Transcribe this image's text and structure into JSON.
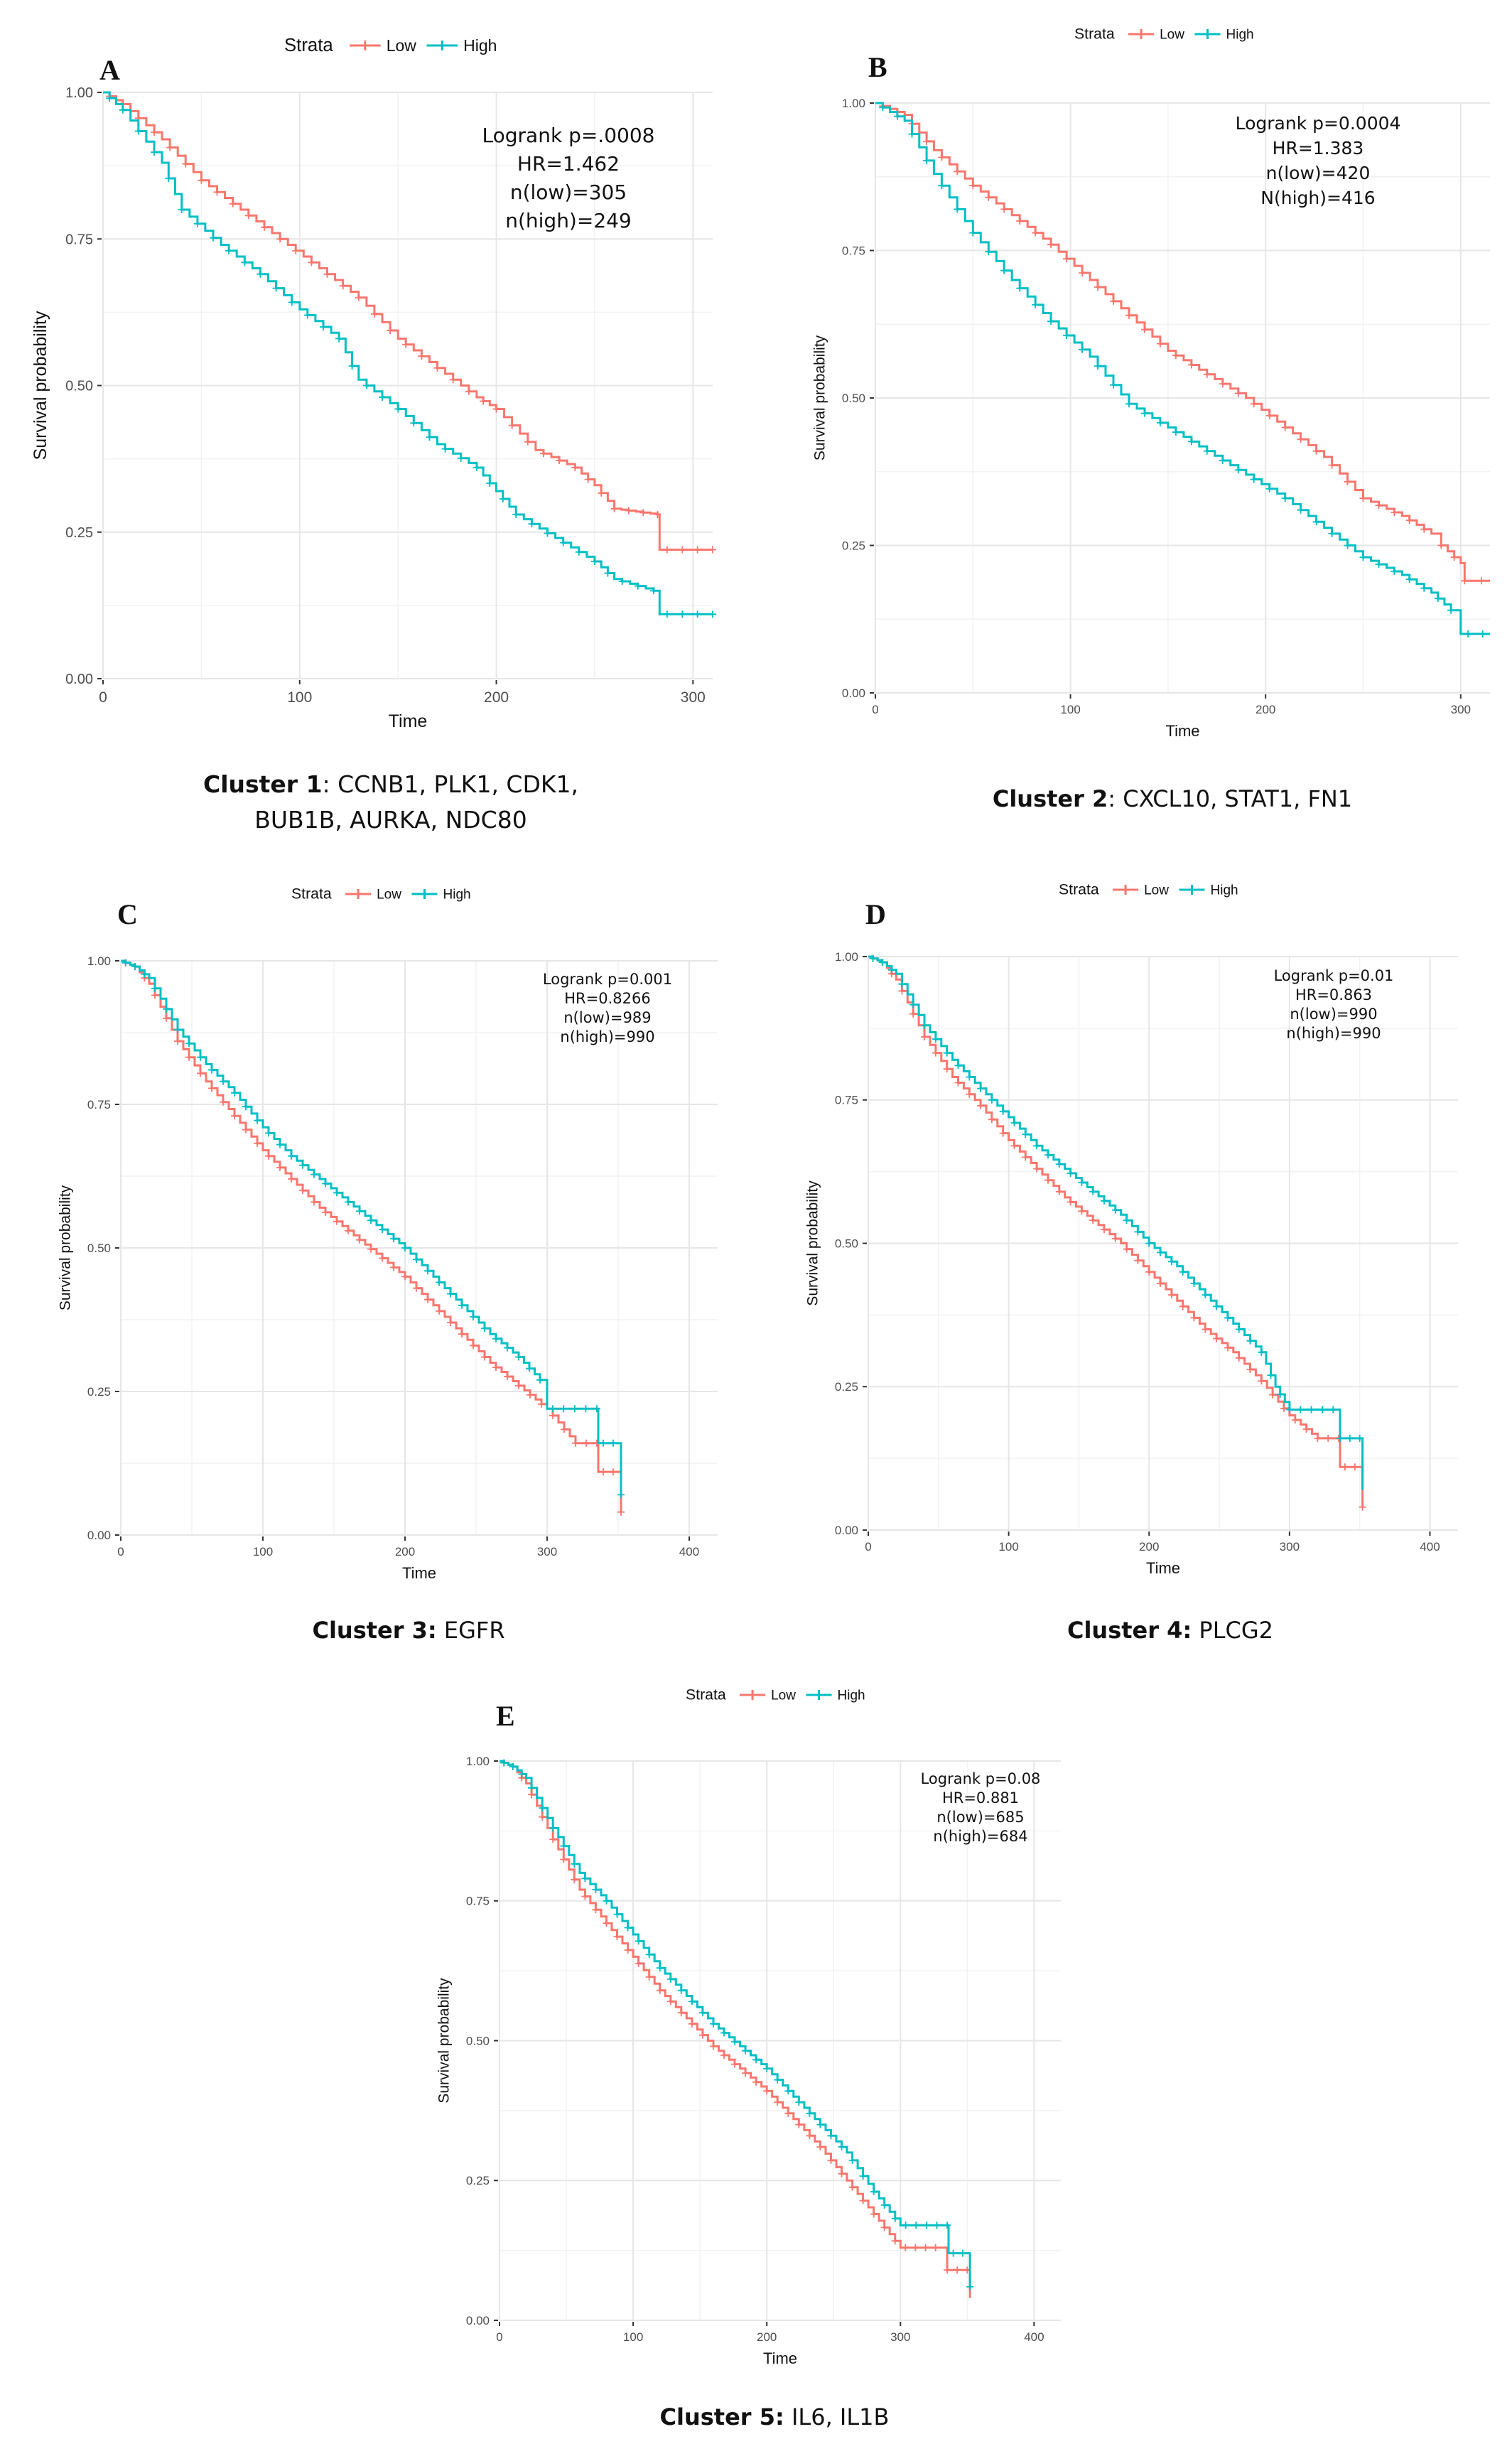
{
  "colors": {
    "low": "#F8766D",
    "high": "#00BFC4"
  },
  "chart_data": [
    {
      "panel": "A",
      "type": "line",
      "legend": {
        "title": "Strata",
        "entries": [
          "Low",
          "High"
        ],
        "position": "top"
      },
      "xlabel": "Time",
      "ylabel": "Survival probability",
      "xlim": [
        0,
        310
      ],
      "ylim": [
        0,
        1
      ],
      "xticks": [
        "0",
        "100",
        "200",
        "300"
      ],
      "yticks": [
        "0.00",
        "0.25",
        "0.50",
        "0.75",
        "1.00"
      ],
      "annotation": [
        "Logrank p=.0008",
        "HR=1.462",
        "n(low)=305",
        "n(high)=249"
      ],
      "caption": {
        "bold": "Cluster 1",
        "rest": ": CCNB1, PLK1, CDK1,",
        "line2": "BUB1B, AURKA, NDC80"
      },
      "series": [
        {
          "name": "Low",
          "points": [
            [
              0,
              1.0
            ],
            [
              10,
              0.98
            ],
            [
              30,
              0.92
            ],
            [
              50,
              0.85
            ],
            [
              70,
              0.8
            ],
            [
              90,
              0.75
            ],
            [
              110,
              0.7
            ],
            [
              130,
              0.65
            ],
            [
              150,
              0.58
            ],
            [
              170,
              0.53
            ],
            [
              190,
              0.48
            ],
            [
              200,
              0.46
            ],
            [
              220,
              0.39
            ],
            [
              240,
              0.36
            ],
            [
              250,
              0.33
            ],
            [
              260,
              0.29
            ],
            [
              282,
              0.28
            ],
            [
              283,
              0.22
            ],
            [
              310,
              0.22
            ]
          ]
        },
        {
          "name": "High",
          "points": [
            [
              0,
              1.0
            ],
            [
              10,
              0.97
            ],
            [
              30,
              0.88
            ],
            [
              40,
              0.8
            ],
            [
              60,
              0.74
            ],
            [
              80,
              0.69
            ],
            [
              100,
              0.63
            ],
            [
              120,
              0.58
            ],
            [
              130,
              0.51
            ],
            [
              150,
              0.46
            ],
            [
              170,
              0.4
            ],
            [
              190,
              0.36
            ],
            [
              200,
              0.32
            ],
            [
              210,
              0.28
            ],
            [
              230,
              0.24
            ],
            [
              250,
              0.2
            ],
            [
              260,
              0.17
            ],
            [
              280,
              0.15
            ],
            [
              283,
              0.11
            ],
            [
              310,
              0.11
            ]
          ]
        }
      ]
    },
    {
      "panel": "B",
      "type": "line",
      "legend": {
        "title": "Strata",
        "entries": [
          "Low",
          "High"
        ],
        "position": "top"
      },
      "xlabel": "Time",
      "ylabel": "Survival probability",
      "xlim": [
        0,
        315
      ],
      "ylim": [
        0,
        1
      ],
      "xticks": [
        "0",
        "100",
        "200",
        "300"
      ],
      "yticks": [
        "0.00",
        "0.25",
        "0.50",
        "0.75",
        "1.00"
      ],
      "annotation": [
        "Logrank p=0.0004",
        "HR=1.383",
        "n(low)=420",
        "N(high)=416"
      ],
      "caption": {
        "bold": "Cluster 2",
        "rest": ": CXCL10, STAT1, FN1",
        "line2": ""
      },
      "series": [
        {
          "name": "Low",
          "points": [
            [
              0,
              1.0
            ],
            [
              15,
              0.98
            ],
            [
              30,
              0.92
            ],
            [
              50,
              0.86
            ],
            [
              70,
              0.81
            ],
            [
              90,
              0.76
            ],
            [
              110,
              0.7
            ],
            [
              130,
              0.64
            ],
            [
              150,
              0.58
            ],
            [
              170,
              0.54
            ],
            [
              190,
              0.5
            ],
            [
              210,
              0.45
            ],
            [
              230,
              0.4
            ],
            [
              250,
              0.33
            ],
            [
              270,
              0.3
            ],
            [
              285,
              0.27
            ],
            [
              290,
              0.25
            ],
            [
              300,
              0.22
            ],
            [
              302,
              0.19
            ],
            [
              315,
              0.19
            ]
          ]
        },
        {
          "name": "High",
          "points": [
            [
              0,
              1.0
            ],
            [
              15,
              0.97
            ],
            [
              30,
              0.88
            ],
            [
              50,
              0.78
            ],
            [
              70,
              0.7
            ],
            [
              90,
              0.63
            ],
            [
              110,
              0.57
            ],
            [
              130,
              0.49
            ],
            [
              150,
              0.45
            ],
            [
              170,
              0.41
            ],
            [
              190,
              0.37
            ],
            [
              210,
              0.33
            ],
            [
              230,
              0.28
            ],
            [
              250,
              0.23
            ],
            [
              270,
              0.2
            ],
            [
              285,
              0.17
            ],
            [
              295,
              0.14
            ],
            [
              300,
              0.1
            ],
            [
              315,
              0.1
            ]
          ]
        }
      ]
    },
    {
      "panel": "C",
      "type": "line",
      "legend": {
        "title": "Strata",
        "entries": [
          "Low",
          "High"
        ],
        "position": "top"
      },
      "xlabel": "Time",
      "ylabel": "Survival probability",
      "xlim": [
        0,
        420
      ],
      "ylim": [
        0,
        1
      ],
      "xticks": [
        "0",
        "100",
        "200",
        "300",
        "400"
      ],
      "yticks": [
        "0.00",
        "0.25",
        "0.50",
        "0.75",
        "1.00"
      ],
      "annotation": [
        "Logrank p=0.001",
        "HR=0.8266",
        "n(low)=989",
        "n(high)=990"
      ],
      "caption": {
        "bold": "Cluster 3:",
        "rest": " EGFR",
        "line2": ""
      },
      "series": [
        {
          "name": "Low",
          "points": [
            [
              0,
              1.0
            ],
            [
              10,
              0.99
            ],
            [
              20,
              0.96
            ],
            [
              40,
              0.86
            ],
            [
              60,
              0.79
            ],
            [
              80,
              0.73
            ],
            [
              100,
              0.67
            ],
            [
              120,
              0.62
            ],
            [
              140,
              0.57
            ],
            [
              160,
              0.53
            ],
            [
              180,
              0.49
            ],
            [
              200,
              0.45
            ],
            [
              220,
              0.4
            ],
            [
              240,
              0.35
            ],
            [
              260,
              0.3
            ],
            [
              280,
              0.26
            ],
            [
              300,
              0.22
            ],
            [
              320,
              0.16
            ],
            [
              335,
              0.16
            ],
            [
              336,
              0.11
            ],
            [
              350,
              0.11
            ],
            [
              352,
              0.04
            ]
          ]
        },
        {
          "name": "High",
          "points": [
            [
              0,
              1.0
            ],
            [
              10,
              0.99
            ],
            [
              20,
              0.97
            ],
            [
              40,
              0.88
            ],
            [
              60,
              0.82
            ],
            [
              80,
              0.77
            ],
            [
              100,
              0.71
            ],
            [
              120,
              0.66
            ],
            [
              140,
              0.62
            ],
            [
              160,
              0.58
            ],
            [
              180,
              0.54
            ],
            [
              200,
              0.5
            ],
            [
              220,
              0.45
            ],
            [
              240,
              0.4
            ],
            [
              260,
              0.35
            ],
            [
              280,
              0.31
            ],
            [
              295,
              0.27
            ],
            [
              300,
              0.22
            ],
            [
              335,
              0.22
            ],
            [
              336,
              0.16
            ],
            [
              350,
              0.16
            ],
            [
              352,
              0.07
            ]
          ]
        }
      ]
    },
    {
      "panel": "D",
      "type": "line",
      "legend": {
        "title": "Strata",
        "entries": [
          "Low",
          "High"
        ],
        "position": "top"
      },
      "xlabel": "Time",
      "ylabel": "Survival probability",
      "xlim": [
        0,
        420
      ],
      "ylim": [
        0,
        1
      ],
      "xticks": [
        "0",
        "100",
        "200",
        "300",
        "400"
      ],
      "yticks": [
        "0.00",
        "0.25",
        "0.50",
        "0.75",
        "1.00"
      ],
      "annotation": [
        "Logrank p=0.01",
        "HR=0.863",
        "n(low)=990",
        "n(high)=990"
      ],
      "caption": {
        "bold": "Cluster 4:",
        "rest": " PLCG2",
        "line2": ""
      },
      "series": [
        {
          "name": "Low",
          "points": [
            [
              0,
              1.0
            ],
            [
              10,
              0.99
            ],
            [
              20,
              0.96
            ],
            [
              40,
              0.86
            ],
            [
              60,
              0.79
            ],
            [
              80,
              0.74
            ],
            [
              100,
              0.68
            ],
            [
              120,
              0.63
            ],
            [
              140,
              0.58
            ],
            [
              160,
              0.54
            ],
            [
              180,
              0.5
            ],
            [
              200,
              0.45
            ],
            [
              220,
              0.4
            ],
            [
              240,
              0.35
            ],
            [
              260,
              0.31
            ],
            [
              280,
              0.26
            ],
            [
              300,
              0.2
            ],
            [
              320,
              0.16
            ],
            [
              335,
              0.16
            ],
            [
              336,
              0.11
            ],
            [
              350,
              0.11
            ],
            [
              352,
              0.04
            ]
          ]
        },
        {
          "name": "High",
          "points": [
            [
              0,
              1.0
            ],
            [
              10,
              0.99
            ],
            [
              20,
              0.97
            ],
            [
              40,
              0.88
            ],
            [
              60,
              0.82
            ],
            [
              80,
              0.77
            ],
            [
              100,
              0.72
            ],
            [
              120,
              0.67
            ],
            [
              140,
              0.63
            ],
            [
              160,
              0.59
            ],
            [
              180,
              0.55
            ],
            [
              200,
              0.5
            ],
            [
              220,
              0.46
            ],
            [
              240,
              0.41
            ],
            [
              260,
              0.36
            ],
            [
              280,
              0.31
            ],
            [
              290,
              0.25
            ],
            [
              300,
              0.21
            ],
            [
              335,
              0.21
            ],
            [
              336,
              0.16
            ],
            [
              350,
              0.16
            ],
            [
              352,
              0.07
            ]
          ]
        }
      ]
    },
    {
      "panel": "E",
      "type": "line",
      "legend": {
        "title": "Strata",
        "entries": [
          "Low",
          "High"
        ],
        "position": "top"
      },
      "xlabel": "Time",
      "ylabel": "Survival probability",
      "xlim": [
        0,
        420
      ],
      "ylim": [
        0,
        1
      ],
      "xticks": [
        "0",
        "100",
        "200",
        "300",
        "400"
      ],
      "yticks": [
        "0.00",
        "0.25",
        "0.50",
        "0.75",
        "1.00"
      ],
      "annotation": [
        "Logrank p=0.08",
        "HR=0.881",
        "n(low)=685",
        "n(high)=684"
      ],
      "caption": {
        "bold": "Cluster 5:",
        "rest": " IL6, IL1B",
        "line2": ""
      },
      "series": [
        {
          "name": "Low",
          "points": [
            [
              0,
              1.0
            ],
            [
              10,
              0.99
            ],
            [
              20,
              0.96
            ],
            [
              40,
              0.86
            ],
            [
              60,
              0.77
            ],
            [
              80,
              0.71
            ],
            [
              100,
              0.65
            ],
            [
              120,
              0.59
            ],
            [
              140,
              0.54
            ],
            [
              160,
              0.49
            ],
            [
              180,
              0.45
            ],
            [
              200,
              0.41
            ],
            [
              220,
              0.36
            ],
            [
              240,
              0.31
            ],
            [
              260,
              0.25
            ],
            [
              280,
              0.19
            ],
            [
              300,
              0.13
            ],
            [
              330,
              0.13
            ],
            [
              335,
              0.09
            ],
            [
              350,
              0.09
            ],
            [
              352,
              0.04
            ]
          ]
        },
        {
          "name": "High",
          "points": [
            [
              0,
              1.0
            ],
            [
              10,
              0.99
            ],
            [
              20,
              0.97
            ],
            [
              40,
              0.88
            ],
            [
              60,
              0.8
            ],
            [
              80,
              0.75
            ],
            [
              100,
              0.69
            ],
            [
              120,
              0.63
            ],
            [
              140,
              0.58
            ],
            [
              160,
              0.53
            ],
            [
              180,
              0.49
            ],
            [
              200,
              0.45
            ],
            [
              220,
              0.4
            ],
            [
              240,
              0.35
            ],
            [
              260,
              0.3
            ],
            [
              280,
              0.23
            ],
            [
              300,
              0.17
            ],
            [
              335,
              0.17
            ],
            [
              336,
              0.12
            ],
            [
              350,
              0.12
            ],
            [
              352,
              0.06
            ]
          ]
        }
      ]
    }
  ]
}
